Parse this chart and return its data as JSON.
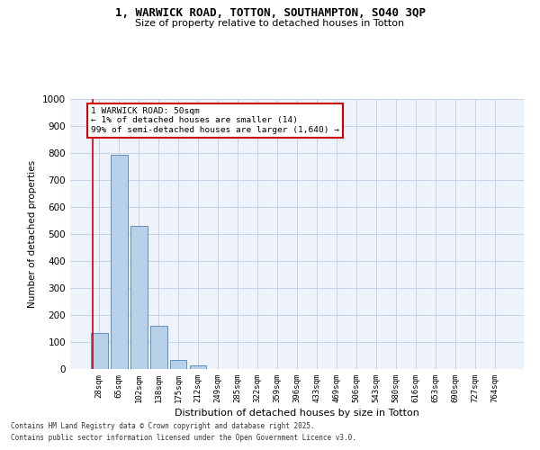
{
  "title_line1": "1, WARWICK ROAD, TOTTON, SOUTHAMPTON, SO40 3QP",
  "title_line2": "Size of property relative to detached houses in Totton",
  "xlabel": "Distribution of detached houses by size in Totton",
  "ylabel": "Number of detached properties",
  "categories": [
    "28sqm",
    "65sqm",
    "102sqm",
    "138sqm",
    "175sqm",
    "212sqm",
    "249sqm",
    "285sqm",
    "322sqm",
    "359sqm",
    "396sqm",
    "433sqm",
    "469sqm",
    "506sqm",
    "543sqm",
    "580sqm",
    "616sqm",
    "653sqm",
    "690sqm",
    "727sqm",
    "764sqm"
  ],
  "values": [
    135,
    795,
    530,
    160,
    35,
    12,
    0,
    0,
    0,
    0,
    0,
    0,
    0,
    0,
    0,
    0,
    0,
    0,
    0,
    0,
    0
  ],
  "bar_color": "#b8d0ea",
  "bar_edge_color": "#6090c0",
  "subject_label": "1 WARWICK ROAD: 50sqm",
  "annotation_line1": "← 1% of detached houses are smaller (14)",
  "annotation_line2": "99% of semi-detached houses are larger (1,640) →",
  "annotation_box_facecolor": "#ffffff",
  "annotation_box_edgecolor": "#cc0000",
  "subject_line_color": "#cc0000",
  "ylim": [
    0,
    1000
  ],
  "yticks": [
    0,
    100,
    200,
    300,
    400,
    500,
    600,
    700,
    800,
    900,
    1000
  ],
  "bg_color": "#eef2fa",
  "grid_color": "#c8d0e8",
  "footer_line1": "Contains HM Land Registry data © Crown copyright and database right 2025.",
  "footer_line2": "Contains public sector information licensed under the Open Government Licence v3.0."
}
